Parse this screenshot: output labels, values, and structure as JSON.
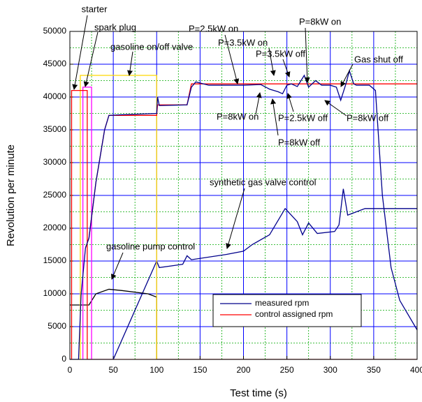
{
  "chart_data": {
    "type": "line",
    "x_label": "Test time (s)",
    "y_label": "Revolution per minute",
    "xlim": [
      0,
      400
    ],
    "xticks": [
      0,
      50,
      100,
      150,
      200,
      250,
      300,
      350,
      400
    ],
    "ylim": [
      0,
      50000
    ],
    "yticks": [
      0,
      5000,
      10000,
      15000,
      20000,
      25000,
      30000,
      35000,
      40000,
      45000,
      50000
    ],
    "grid": true,
    "grid_color": "#0000ff",
    "minor_grid_color": "#00aa00",
    "legend": "lower right",
    "series": [
      {
        "name": "measured rpm",
        "color": "#00008b",
        "x": [
          0,
          10,
          13,
          18,
          22,
          30,
          40,
          45,
          60,
          100,
          101,
          103,
          135,
          140,
          145,
          160,
          200,
          220,
          230,
          240,
          245,
          250,
          255,
          262,
          270,
          275,
          283,
          290,
          300,
          307,
          312,
          318,
          322,
          327,
          330,
          345,
          352,
          360,
          370,
          380,
          400,
          420,
          430
        ],
        "values": [
          0,
          0,
          10000,
          17000,
          18500,
          27000,
          35000,
          37200,
          37300,
          37500,
          40000,
          38700,
          38800,
          41500,
          42300,
          41800,
          41800,
          41900,
          41200,
          40800,
          40500,
          41800,
          42000,
          41600,
          43300,
          41500,
          42500,
          41800,
          41800,
          41500,
          39500,
          42000,
          44000,
          42000,
          41800,
          41800,
          41000,
          25000,
          14000,
          9000,
          4500,
          1500,
          0
        ]
      },
      {
        "name": "control assigned rpm",
        "color": "#ff0000",
        "x": [
          18,
          22,
          30,
          40,
          45,
          100,
          101,
          135,
          140,
          400
        ],
        "values": [
          17000,
          18500,
          27000,
          35000,
          37200,
          37200,
          38800,
          38800,
          42000,
          42000
        ]
      },
      {
        "color": "#ff0000",
        "x": [
          0,
          2,
          2,
          20,
          20,
          400
        ],
        "values": [
          0,
          0,
          41000,
          41000,
          0,
          0
        ]
      },
      {
        "color": "#ff00ff",
        "x": [
          15,
          15,
          25,
          25
        ],
        "values": [
          0,
          41500,
          41500,
          0
        ]
      },
      {
        "color": "#ffd700",
        "x": [
          12,
          12,
          100,
          100
        ],
        "values": [
          0,
          43300,
          43300,
          0
        ]
      },
      {
        "color": "#000000",
        "x": [
          0,
          22,
          30,
          45,
          60,
          90,
          100,
          100,
          430
        ],
        "values": [
          8300,
          8300,
          10000,
          10700,
          10500,
          10000,
          9500,
          0,
          0
        ]
      },
      {
        "color": "#00008b",
        "x": [
          0,
          50,
          100,
          103,
          130,
          135,
          140,
          180,
          200,
          210,
          230,
          248,
          255,
          262,
          268,
          275,
          285,
          305,
          310,
          315,
          320,
          330,
          340,
          400
        ],
        "values": [
          0,
          0,
          15000,
          14000,
          14500,
          15800,
          15200,
          16000,
          16500,
          17500,
          19000,
          23000,
          22000,
          21000,
          19000,
          20800,
          19200,
          19500,
          20500,
          26000,
          22000,
          22500,
          23000,
          23000
        ]
      }
    ],
    "annotations": [
      "starter",
      "spark plug",
      "gasoline on/off valve",
      "P=2.5kW on",
      "P=3.5kW on",
      "P=3.5kW off",
      "P=8kW on",
      "Gas shut off",
      "P=8kW on",
      "P=2.5kW off",
      "P=8kW off",
      "P=8kW off",
      "synthetic gas valve control",
      "gasoline pump control"
    ]
  }
}
